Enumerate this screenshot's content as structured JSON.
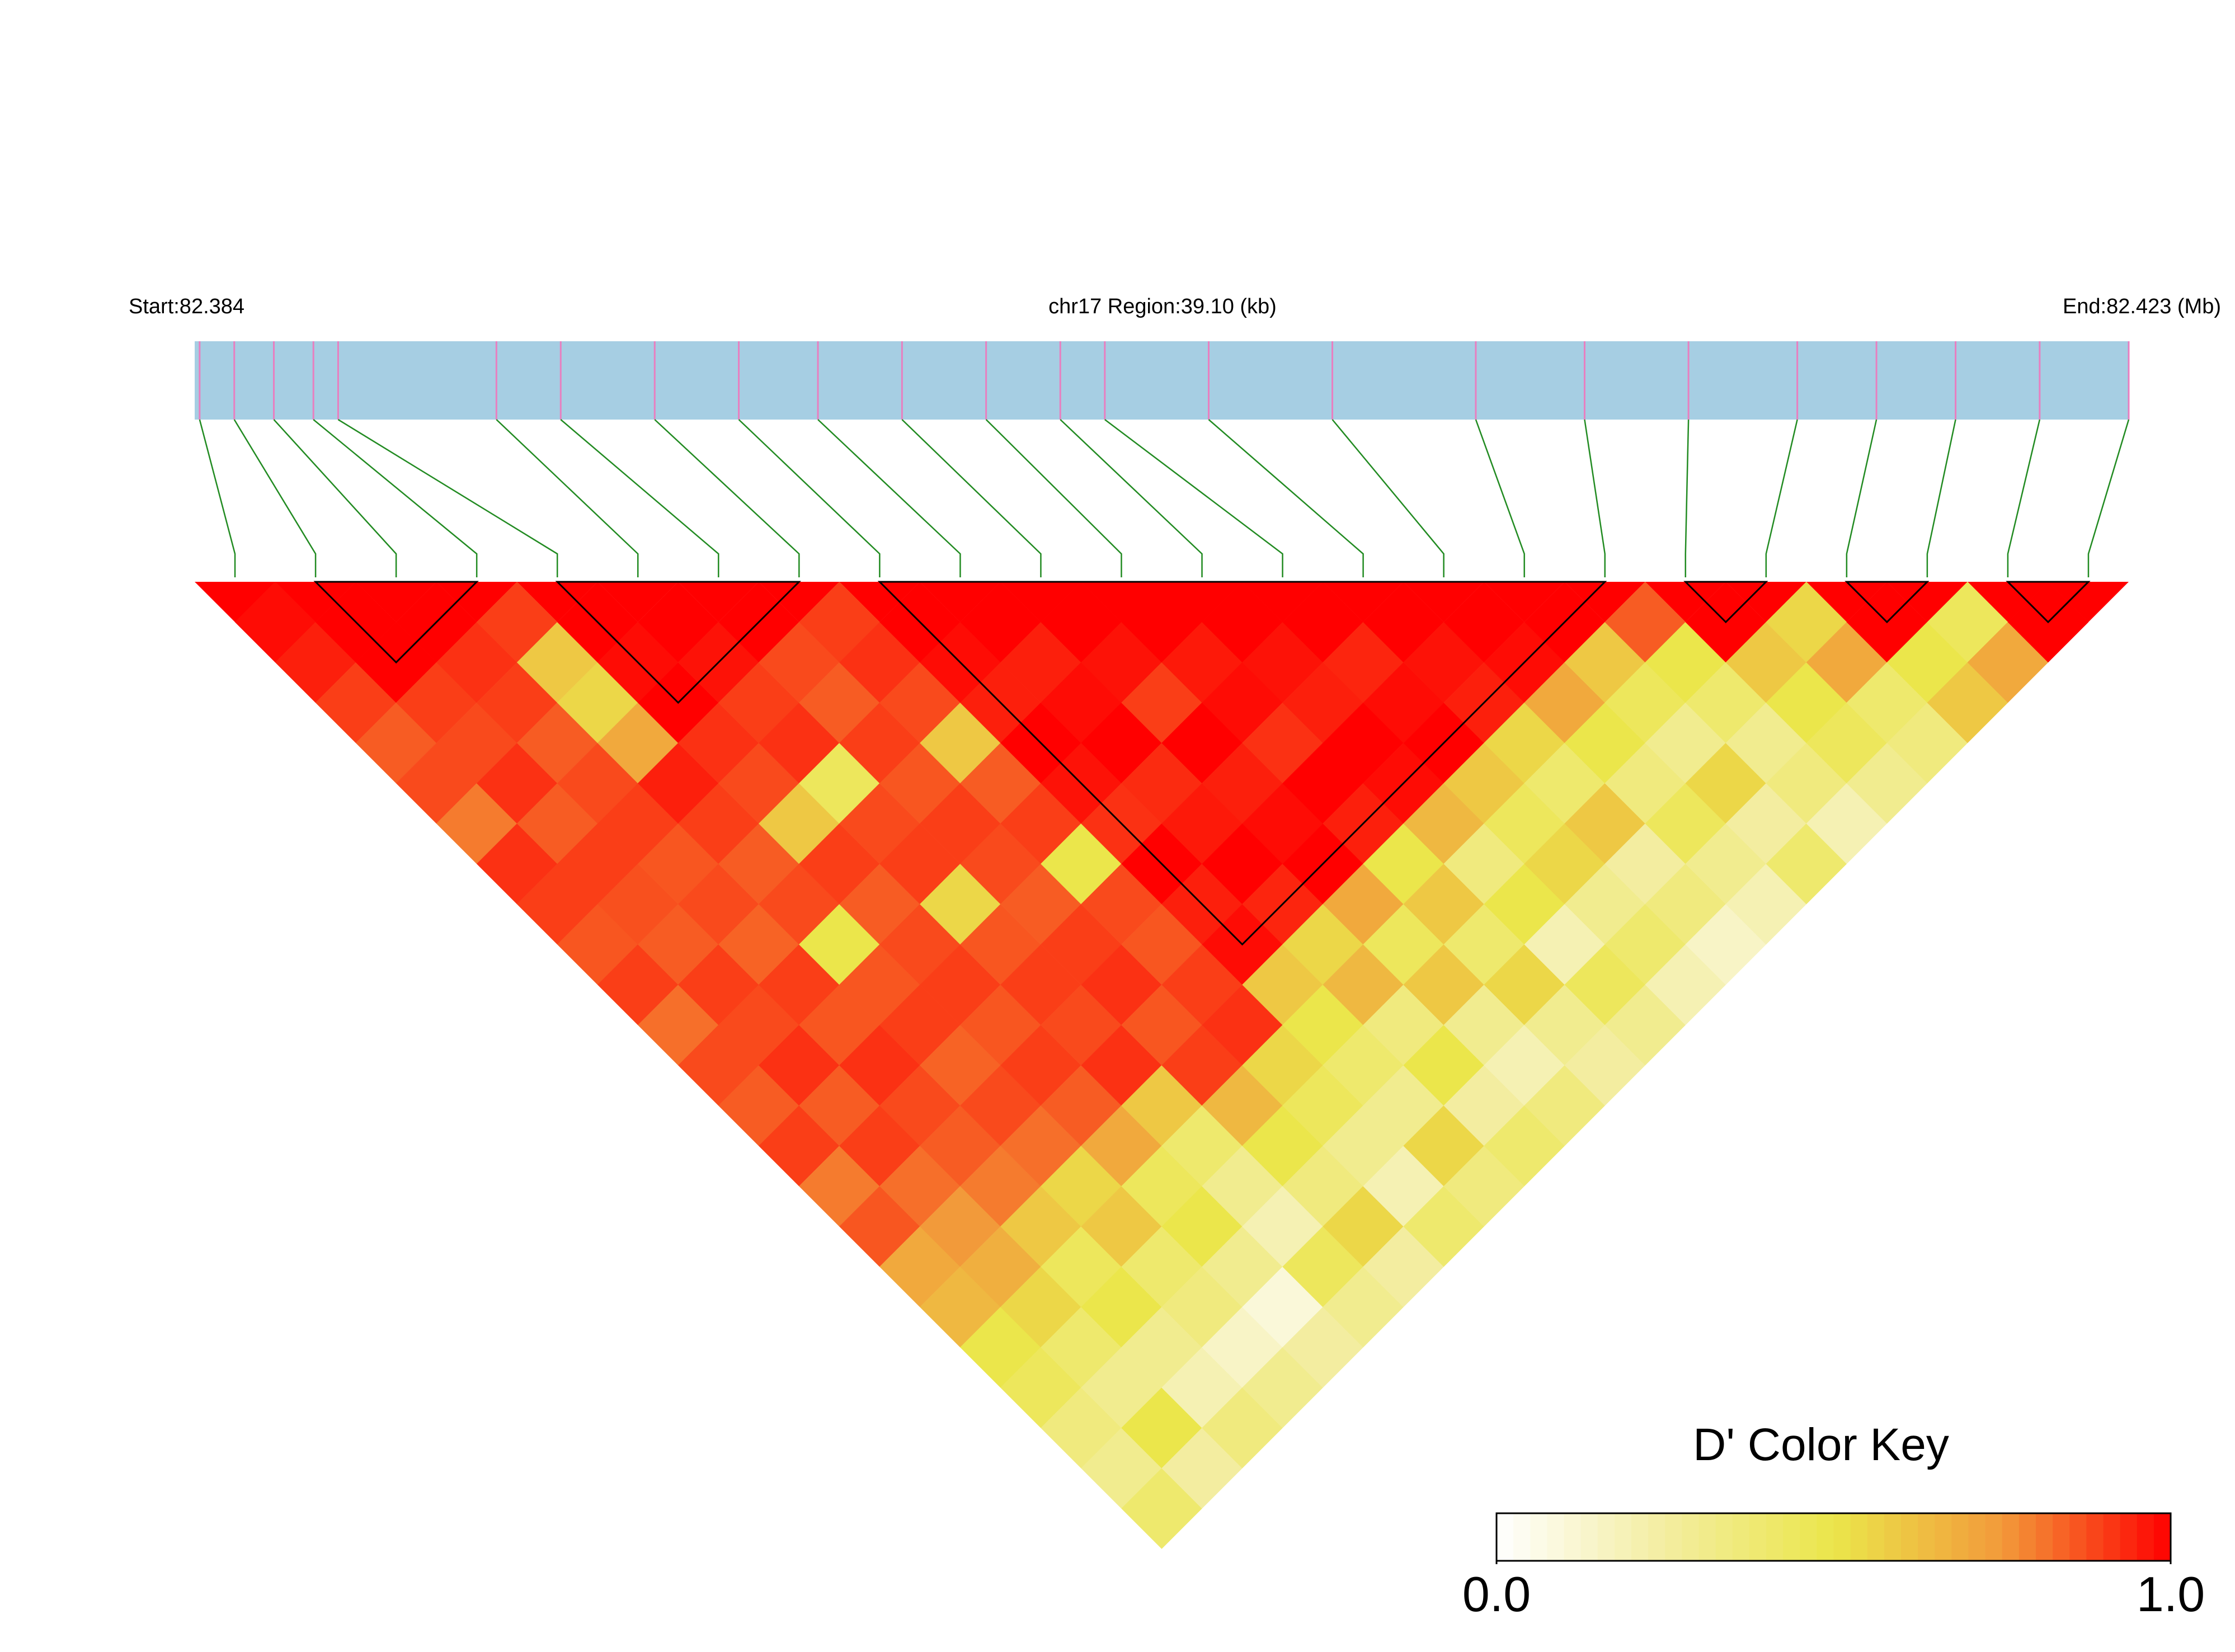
{
  "chart_data": {
    "type": "ld_heatmap",
    "start_label": "Start:82.384",
    "region_label": "chr17 Region:39.10 (kb)",
    "end_label": "End:82.423 (Mb)",
    "xlim": [
      82384000,
      82423100
    ],
    "snp_positions": [
      82384100,
      82384800,
      82385600,
      82386400,
      82386900,
      82390100,
      82391400,
      82393300,
      82395000,
      82396600,
      82398300,
      82400000,
      82401500,
      82402400,
      82404500,
      82407000,
      82409900,
      82412100,
      82414200,
      82416400,
      82418000,
      82419600,
      82421300,
      82423100
    ],
    "blocks": [
      [
        1,
        3
      ],
      [
        4,
        7
      ],
      [
        8,
        17
      ],
      [
        18,
        19
      ],
      [
        20,
        21
      ],
      [
        22,
        23
      ]
    ],
    "dprime": [
      [
        0.98,
        0.95,
        0.9,
        0.85,
        0.88,
        0.8,
        0.92,
        0.9,
        0.86,
        0.9,
        0.82,
        0.88,
        0.85,
        0.9,
        0.8,
        0.86,
        0.7,
        0.65,
        0.5,
        0.45,
        0.35,
        0.3,
        0.4
      ],
      [
        1,
        1,
        0.9,
        0.88,
        0.92,
        0.85,
        0.9,
        0.87,
        0.85,
        0.9,
        0.88,
        0.92,
        0.85,
        0.9,
        0.82,
        0.75,
        0.68,
        0.55,
        0.4,
        0.3,
        0.5,
        0.25
      ],
      [
        1,
        0.92,
        0.9,
        0.85,
        0.88,
        0.9,
        0.86,
        0.88,
        0.84,
        0.9,
        0.86,
        0.92,
        0.88,
        0.85,
        0.8,
        0.6,
        0.45,
        0.5,
        0.3,
        0.2,
        0.35
      ],
      [
        0.9,
        0.6,
        0.55,
        0.7,
        0.95,
        0.9,
        0.85,
        0.88,
        0.5,
        0.86,
        0.9,
        0.84,
        0.88,
        0.82,
        0.55,
        0.6,
        0.4,
        0.35,
        0.15,
        0.3
      ],
      [
        1,
        0.98,
        1,
        0.92,
        0.88,
        0.6,
        0.9,
        0.85,
        0.88,
        0.9,
        0.86,
        0.9,
        0.85,
        0.7,
        0.45,
        0.5,
        0.3,
        0.1,
        0.25
      ],
      [
        1,
        0.97,
        0.9,
        0.92,
        0.45,
        0.88,
        0.9,
        0.55,
        0.86,
        0.9,
        0.88,
        0.92,
        0.6,
        0.4,
        0.3,
        0.2,
        0.45,
        0.3
      ],
      [
        1,
        0.88,
        0.85,
        0.9,
        0.86,
        0.9,
        0.88,
        0.85,
        0.9,
        0.92,
        0.86,
        0.9,
        0.65,
        0.5,
        0.35,
        0.55,
        0.25
      ],
      [
        0.9,
        0.92,
        0.88,
        0.6,
        0.85,
        0.9,
        0.5,
        0.88,
        0.86,
        0.9,
        0.92,
        0.55,
        0.45,
        0.3,
        0.2,
        0.4
      ],
      [
        1,
        0.98,
        0.95,
        1,
        0.97,
        0.92,
        1,
        0.95,
        0.98,
        0.6,
        0.5,
        0.4,
        0.3,
        0.55,
        0.35
      ],
      [
        1,
        0.95,
        0.98,
        1,
        0.93,
        0.96,
        1,
        0.94,
        0.55,
        0.65,
        0.35,
        0.5,
        0.25,
        0.4
      ],
      [
        1,
        0.97,
        0.9,
        1,
        0.95,
        0.98,
        1,
        0.7,
        0.45,
        0.6,
        0.3,
        0.2,
        0.35
      ],
      [
        1,
        0.96,
        0.98,
        0.92,
        1,
        0.95,
        0.5,
        0.6,
        0.4,
        0.55,
        0.3,
        0.25
      ],
      [
        1,
        0.97,
        0.95,
        1,
        0.98,
        0.65,
        0.35,
        0.5,
        0.2,
        0.45,
        0.3
      ],
      [
        1,
        0.94,
        0.98,
        1,
        0.6,
        0.45,
        0.55,
        0.3,
        0.4,
        0.2
      ],
      [
        1,
        0.97,
        0.95,
        0.55,
        0.4,
        0.6,
        0.25,
        0.35,
        0.15
      ],
      [
        1,
        0.98,
        0.7,
        0.5,
        0.35,
        0.45,
        0.3,
        0.2
      ],
      [
        1,
        0.6,
        0.45,
        0.3,
        0.55,
        0.25,
        0.4
      ],
      [
        0.85,
        0.5,
        0.4,
        0.3,
        0.35,
        0.2
      ],
      [
        1,
        0.6,
        0.5,
        0.45,
        0.3
      ],
      [
        0.55,
        0.7,
        0.4,
        0.35
      ],
      [
        1,
        0.5,
        0.6
      ],
      [
        0.45,
        0.7
      ],
      [
        1
      ]
    ],
    "color_key": {
      "title": "D' Color Key",
      "lim": [
        0,
        1
      ],
      "ticks": [
        {
          "value": 0,
          "label": "0.0"
        },
        {
          "value": 1,
          "label": "1.0"
        }
      ],
      "colors": [
        "#ffffff",
        "#f3eda0",
        "#ebe64b",
        "#f29a3a",
        "#ff0000"
      ]
    },
    "bar_color": "#a6cee3",
    "snp_color": "#e87fc0",
    "link_color": "#228b22"
  }
}
